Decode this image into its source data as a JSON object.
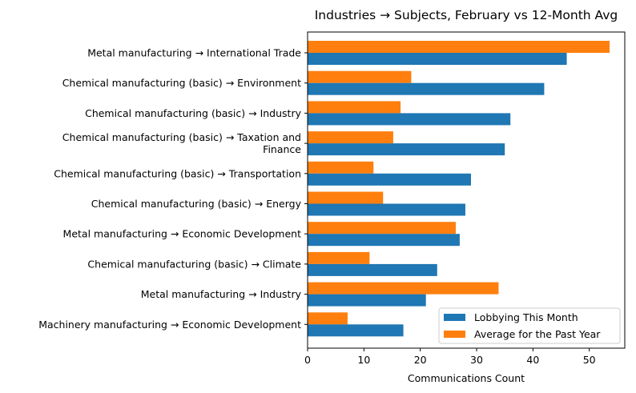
{
  "chart_data": {
    "type": "bar",
    "orientation": "horizontal",
    "title": "Industries → Subjects, February vs 12-Month Avg",
    "xlabel": "Communications Count",
    "ylabel": "",
    "xlim": [
      0,
      56.3
    ],
    "xticks": [
      0,
      10,
      20,
      30,
      40,
      50
    ],
    "grid": false,
    "legend_position": "lower-right",
    "categories": [
      [
        "Metal manufacturing → International Trade"
      ],
      [
        "Chemical manufacturing (basic) → Environment"
      ],
      [
        "Chemical manufacturing (basic) → Industry"
      ],
      [
        "Chemical manufacturing (basic) → Taxation and",
        "Finance"
      ],
      [
        "Chemical manufacturing (basic) → Transportation"
      ],
      [
        "Chemical manufacturing (basic) → Energy"
      ],
      [
        "Metal manufacturing → Economic Development"
      ],
      [
        "Chemical manufacturing (basic) → Climate"
      ],
      [
        "Metal manufacturing → Industry"
      ],
      [
        "Machinery manufacturing → Economic Development"
      ]
    ],
    "series": [
      {
        "name": "Lobbying This Month",
        "color": "#1f77b4",
        "values": [
          46,
          42,
          36,
          35,
          29,
          28,
          27,
          23,
          21,
          17
        ]
      },
      {
        "name": "Average for the Past Year",
        "color": "#ff7f0e",
        "values": [
          53.6,
          18.4,
          16.5,
          15.2,
          11.7,
          13.4,
          26.3,
          11.0,
          33.9,
          7.1
        ]
      }
    ]
  }
}
